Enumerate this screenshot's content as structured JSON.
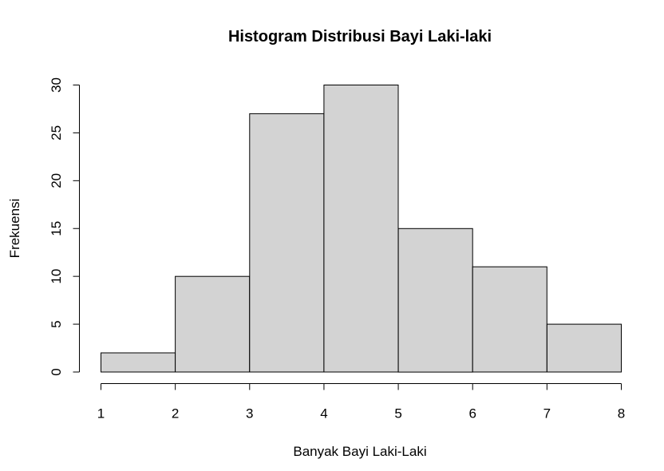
{
  "chart_data": {
    "type": "bar",
    "subtype": "histogram",
    "title": "Histogram Distribusi Bayi Laki-laki",
    "xlabel": "Banyak Bayi Laki-Laki",
    "ylabel": "Frekuensi",
    "bin_edges": [
      1,
      2,
      3,
      4,
      5,
      6,
      7,
      8
    ],
    "categories": [
      "1-2",
      "2-3",
      "3-4",
      "4-5",
      "5-6",
      "6-7",
      "7-8"
    ],
    "values": [
      2,
      10,
      27,
      30,
      15,
      11,
      5
    ],
    "xlim": [
      1,
      8
    ],
    "ylim": [
      0,
      30
    ],
    "x_ticks": [
      "1",
      "2",
      "3",
      "4",
      "5",
      "6",
      "7",
      "8"
    ],
    "y_ticks": [
      "0",
      "5",
      "10",
      "15",
      "20",
      "25",
      "30"
    ],
    "grid": false,
    "legend": "none",
    "colors": {
      "bar_fill": "#d3d3d3",
      "bar_stroke": "#000000",
      "axis": "#000000",
      "text": "#000000",
      "background": "#ffffff"
    }
  }
}
